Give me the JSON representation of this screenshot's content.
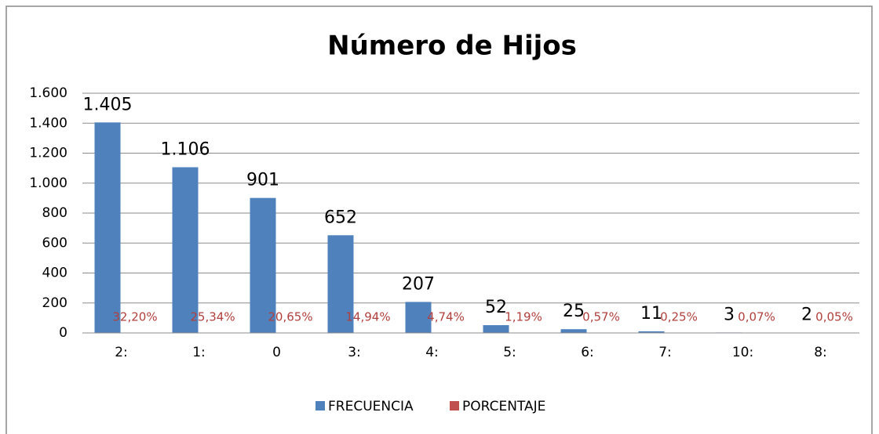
{
  "chart_data": {
    "type": "bar",
    "title": "Número de Hijos",
    "categories": [
      "2:",
      "1:",
      "0",
      "3:",
      "4:",
      "5:",
      "6:",
      "7:",
      "10:",
      "8:"
    ],
    "series": [
      {
        "name": "FRECUENCIA",
        "color": "#4f81bd",
        "values": [
          1405,
          1106,
          901,
          652,
          207,
          52,
          25,
          11,
          3,
          2
        ],
        "value_labels": [
          "1.405",
          "1.106",
          "901",
          "652",
          "207",
          "52",
          "25",
          "11",
          "3",
          "2"
        ]
      },
      {
        "name": "PORCENTAJE",
        "color": "#c0504d",
        "values": [
          0.322,
          0.2534,
          0.2065,
          0.1494,
          0.0474,
          0.0119,
          0.0057,
          0.0025,
          0.0007,
          0.0005
        ],
        "value_labels": [
          "32,20%",
          "25,34%",
          "20,65%",
          "14,94%",
          "4,74%",
          "1,19%",
          "0,57%",
          "0,25%",
          "0,07%",
          "0,05%"
        ]
      }
    ],
    "ylim": [
      0,
      1600
    ],
    "yticks": [
      0,
      200,
      400,
      600,
      800,
      {
        "value": 1000,
        "label": "1.000"
      },
      {
        "value": 1200,
        "label": "1.200"
      },
      {
        "value": 1400,
        "label": "1.400"
      },
      {
        "value": 1600,
        "label": "1.600"
      }
    ],
    "grid": true,
    "legend": "bottom"
  }
}
